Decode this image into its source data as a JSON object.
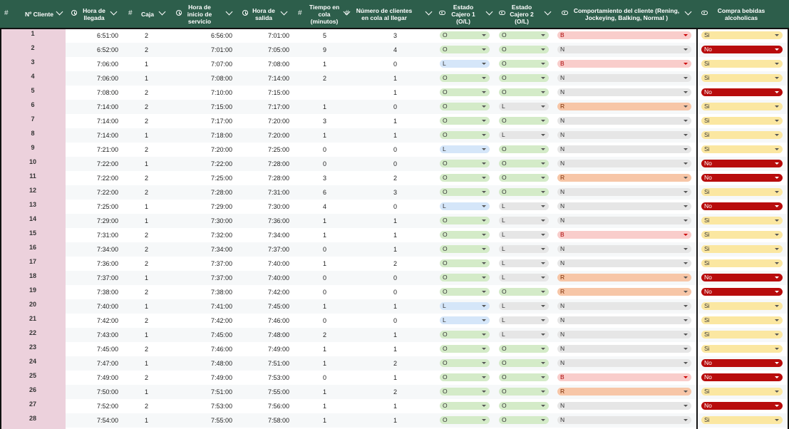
{
  "headers": [
    {
      "key": "id",
      "type": "#",
      "label": "Nº Cliente"
    },
    {
      "key": "llegada",
      "type": "clock",
      "label": "Hora de llegada"
    },
    {
      "key": "caja",
      "type": "#",
      "label": "Caja"
    },
    {
      "key": "inicio",
      "type": "clock",
      "label": "Hora de inicio de servicio"
    },
    {
      "key": "salida",
      "type": "clock",
      "label": "Hora de salida"
    },
    {
      "key": "cola",
      "type": "#",
      "label": "Tiempo en cola (minutos)"
    },
    {
      "key": "num",
      "type": "#",
      "label": "Número de clientes en cola al llegar"
    },
    {
      "key": "c1",
      "type": "pill",
      "label": "Estado Cajero 1 (O/L)"
    },
    {
      "key": "c2",
      "type": "pill",
      "label": "Estado Cajero 2 (O/L)"
    },
    {
      "key": "comp",
      "type": "pill",
      "label": "Comportamiento del cliente (Rening, Jockeying, Balking, Normal )"
    },
    {
      "key": "alc",
      "type": "pill",
      "label": "Compra bebidas alcoholicas"
    }
  ],
  "rows": [
    {
      "id": "1",
      "llegada": "6:51:00",
      "caja": "2",
      "inicio": "6:56:00",
      "salida": "7:01:00",
      "cola": "5",
      "num": "3",
      "c1": "O",
      "c2": "O",
      "comp": "B",
      "alc": "Si"
    },
    {
      "id": "2",
      "llegada": "6:52:00",
      "caja": "2",
      "inicio": "7:01:00",
      "salida": "7:05:00",
      "cola": "9",
      "num": "4",
      "c1": "O",
      "c2": "O",
      "comp": "N",
      "alc": "No"
    },
    {
      "id": "3",
      "llegada": "7:06:00",
      "caja": "1",
      "inicio": "7:07:00",
      "salida": "7:08:00",
      "cola": "1",
      "num": "0",
      "c1": "L",
      "c2": "O",
      "comp": "B",
      "alc": "Si"
    },
    {
      "id": "4",
      "llegada": "7:06:00",
      "caja": "1",
      "inicio": "7:08:00",
      "salida": "7:14:00",
      "cola": "2",
      "num": "1",
      "c1": "O",
      "c2": "O",
      "comp": "N",
      "alc": "Si"
    },
    {
      "id": "5",
      "llegada": "7:08:00",
      "caja": "2",
      "inicio": "7:10:00",
      "salida": "7:15:00",
      "cola": "",
      "num": "1",
      "c1": "O",
      "c2": "O",
      "comp": "N",
      "alc": "No"
    },
    {
      "id": "6",
      "llegada": "7:14:00",
      "caja": "2",
      "inicio": "7:15:00",
      "salida": "7:17:00",
      "cola": "1",
      "num": "0",
      "c1": "O",
      "c2": "L",
      "comp": "R",
      "alc": "Si"
    },
    {
      "id": "7",
      "llegada": "7:14:00",
      "caja": "2",
      "inicio": "7:17:00",
      "salida": "7:20:00",
      "cola": "3",
      "num": "1",
      "c1": "O",
      "c2": "O",
      "comp": "N",
      "alc": "Si"
    },
    {
      "id": "8",
      "llegada": "7:14:00",
      "caja": "1",
      "inicio": "7:18:00",
      "salida": "7:20:00",
      "cola": "1",
      "num": "1",
      "c1": "O",
      "c2": "L",
      "comp": "N",
      "alc": "Si"
    },
    {
      "id": "9",
      "llegada": "7:21:00",
      "caja": "2",
      "inicio": "7:20:00",
      "salida": "7:25:00",
      "cola": "0",
      "num": "0",
      "c1": "L",
      "c2": "O",
      "comp": "N",
      "alc": "Si"
    },
    {
      "id": "10",
      "llegada": "7:22:00",
      "caja": "1",
      "inicio": "7:22:00",
      "salida": "7:28:00",
      "cola": "0",
      "num": "0",
      "c1": "O",
      "c2": "O",
      "comp": "N",
      "alc": "No"
    },
    {
      "id": "11",
      "llegada": "7:22:00",
      "caja": "2",
      "inicio": "7:25:00",
      "salida": "7:28:00",
      "cola": "3",
      "num": "2",
      "c1": "O",
      "c2": "O",
      "comp": "R",
      "alc": "No"
    },
    {
      "id": "12",
      "llegada": "7:22:00",
      "caja": "2",
      "inicio": "7:28:00",
      "salida": "7:31:00",
      "cola": "6",
      "num": "3",
      "c1": "O",
      "c2": "O",
      "comp": "N",
      "alc": "Si"
    },
    {
      "id": "13",
      "llegada": "7:25:00",
      "caja": "1",
      "inicio": "7:29:00",
      "salida": "7:30:00",
      "cola": "4",
      "num": "0",
      "c1": "L",
      "c2": "L",
      "comp": "N",
      "alc": "No"
    },
    {
      "id": "14",
      "llegada": "7:29:00",
      "caja": "1",
      "inicio": "7:30:00",
      "salida": "7:36:00",
      "cola": "1",
      "num": "1",
      "c1": "O",
      "c2": "L",
      "comp": "N",
      "alc": "Si"
    },
    {
      "id": "15",
      "llegada": "7:31:00",
      "caja": "2",
      "inicio": "7:32:00",
      "salida": "7:34:00",
      "cola": "1",
      "num": "1",
      "c1": "O",
      "c2": "L",
      "comp": "B",
      "alc": "Si"
    },
    {
      "id": "16",
      "llegada": "7:34:00",
      "caja": "2",
      "inicio": "7:34:00",
      "salida": "7:37:00",
      "cola": "0",
      "num": "1",
      "c1": "O",
      "c2": "L",
      "comp": "N",
      "alc": "Si"
    },
    {
      "id": "17",
      "llegada": "7:36:00",
      "caja": "2",
      "inicio": "7:37:00",
      "salida": "7:40:00",
      "cola": "1",
      "num": "2",
      "c1": "O",
      "c2": "L",
      "comp": "N",
      "alc": "Si"
    },
    {
      "id": "18",
      "llegada": "7:37:00",
      "caja": "1",
      "inicio": "7:37:00",
      "salida": "7:40:00",
      "cola": "0",
      "num": "0",
      "c1": "O",
      "c2": "L",
      "comp": "R",
      "alc": "No"
    },
    {
      "id": "19",
      "llegada": "7:38:00",
      "caja": "2",
      "inicio": "7:38:00",
      "salida": "7:42:00",
      "cola": "0",
      "num": "0",
      "c1": "O",
      "c2": "O",
      "comp": "R",
      "alc": "No"
    },
    {
      "id": "20",
      "llegada": "7:40:00",
      "caja": "1",
      "inicio": "7:41:00",
      "salida": "7:45:00",
      "cola": "1",
      "num": "1",
      "c1": "L",
      "c2": "L",
      "comp": "N",
      "alc": "Si"
    },
    {
      "id": "21",
      "llegada": "7:42:00",
      "caja": "2",
      "inicio": "7:42:00",
      "salida": "7:46:00",
      "cola": "0",
      "num": "0",
      "c1": "L",
      "c2": "L",
      "comp": "N",
      "alc": "Si"
    },
    {
      "id": "22",
      "llegada": "7:43:00",
      "caja": "1",
      "inicio": "7:45:00",
      "salida": "7:48:00",
      "cola": "2",
      "num": "1",
      "c1": "O",
      "c2": "L",
      "comp": "N",
      "alc": "Si"
    },
    {
      "id": "23",
      "llegada": "7:45:00",
      "caja": "2",
      "inicio": "7:46:00",
      "salida": "7:49:00",
      "cola": "1",
      "num": "1",
      "c1": "O",
      "c2": "O",
      "comp": "N",
      "alc": "Si"
    },
    {
      "id": "24",
      "llegada": "7:47:00",
      "caja": "1",
      "inicio": "7:48:00",
      "salida": "7:51:00",
      "cola": "1",
      "num": "2",
      "c1": "O",
      "c2": "O",
      "comp": "N",
      "alc": "No"
    },
    {
      "id": "25",
      "llegada": "7:49:00",
      "caja": "2",
      "inicio": "7:49:00",
      "salida": "7:53:00",
      "cola": "0",
      "num": "1",
      "c1": "O",
      "c2": "O",
      "comp": "B",
      "alc": "No"
    },
    {
      "id": "26",
      "llegada": "7:50:00",
      "caja": "1",
      "inicio": "7:51:00",
      "salida": "7:55:00",
      "cola": "1",
      "num": "2",
      "c1": "O",
      "c2": "O",
      "comp": "R",
      "alc": "Si"
    },
    {
      "id": "27",
      "llegada": "7:52:00",
      "caja": "2",
      "inicio": "7:53:00",
      "salida": "7:56:00",
      "cola": "1",
      "num": "1",
      "c1": "O",
      "c2": "O",
      "comp": "N",
      "alc": "No"
    },
    {
      "id": "28",
      "llegada": "7:54:00",
      "caja": "1",
      "inicio": "7:55:00",
      "salida": "7:58:00",
      "cola": "1",
      "num": "1",
      "c1": "O",
      "c2": "O",
      "comp": "N",
      "alc": "Si"
    }
  ],
  "colors": {
    "header_bg": "#2d5e4b",
    "id_col_bg": "#ecd1dc",
    "chip_O": "#d4ebc8",
    "chip_L": "#d5e6f9",
    "chip_N": "#e6e6e6",
    "chip_B": "#f9cdcb",
    "chip_R": "#f7c6a7",
    "chip_Si": "#fbe7a1",
    "chip_No": "#b80c0c"
  },
  "icons": {
    "number": "hash-icon",
    "time": "clock-icon",
    "dropdown": "dropdown-chip-icon",
    "filter": "chevron-down-icon"
  }
}
